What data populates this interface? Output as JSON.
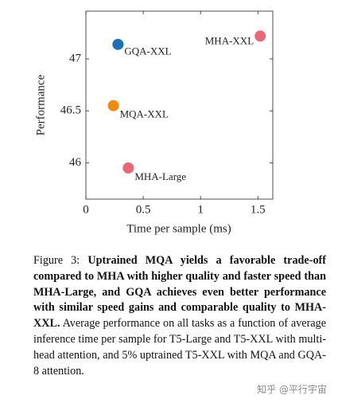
{
  "chart_data": {
    "type": "scatter",
    "xlabel": "Time per sample (ms)",
    "ylabel": "Performance",
    "xlim": [
      0,
      1.63
    ],
    "ylim": [
      45.65,
      47.46
    ],
    "xticks": [
      0,
      0.5,
      1,
      1.5
    ],
    "yticks": [
      46,
      46.5,
      47
    ],
    "series": [
      {
        "name": "GQA-XXL",
        "color": "#1f6fb4",
        "x": [
          0.28
        ],
        "values": [
          47.14
        ]
      },
      {
        "name": "MHA-XXL",
        "color": "#e8687a",
        "x": [
          1.52
        ],
        "values": [
          47.22
        ]
      },
      {
        "name": "MQA-XXL",
        "color": "#f08a10",
        "x": [
          0.24
        ],
        "values": [
          46.55
        ]
      },
      {
        "name": "MHA-Large",
        "color": "#e8687a",
        "x": [
          0.37
        ],
        "values": [
          45.95
        ]
      }
    ]
  },
  "caption": {
    "label": "Figure 3:",
    "bold": "Uptrained MQA yields a favorable trade-off compared to MHA with higher quality and faster speed than MHA-Large, and GQA achieves even better performance with similar speed gains and comparable quality to MHA-XXL.",
    "text": "Average performance on all tasks as a function of average inference time per sample for T5-Large and T5-XXL with multi-head attention, and 5% uptrained T5-XXL with MQA and GQA-8 attention."
  },
  "watermark": "知乎 @平行宇宙"
}
